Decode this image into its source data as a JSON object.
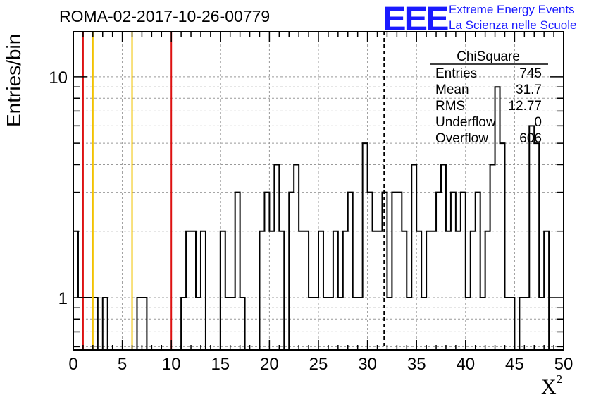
{
  "header": {
    "run_title": "ROMA-02-2017-10-26-00779",
    "logo_text": "EEE",
    "logo_line1": "Extreme Energy Events",
    "logo_line2": "La Scienza nelle Scuole"
  },
  "colors": {
    "histogram": "#000000",
    "red_lines": "#dd1111",
    "yellow_lines": "#f2c200",
    "logo": "#1a1aff",
    "grid": "#999999"
  },
  "stats_box": {
    "name": "ChiSquare",
    "rows": [
      {
        "label": "Entries",
        "value": "745"
      },
      {
        "label": "Mean",
        "value": "31.7"
      },
      {
        "label": "RMS",
        "value": "12.77"
      },
      {
        "label": "Underflow",
        "value": "0"
      },
      {
        "label": "Overflow",
        "value": "606"
      }
    ]
  },
  "chart_data": {
    "type": "histogram",
    "xlabel": "X",
    "xlabel_sup": "2",
    "ylabel": "Entries/bin",
    "xlim": [
      0,
      50
    ],
    "ylim": [
      0.58,
      16
    ],
    "log_y": true,
    "grid": true,
    "bin_width": 0.5,
    "x_ticks": [
      "0",
      "5",
      "10",
      "15",
      "20",
      "25",
      "30",
      "35",
      "40",
      "45",
      "50"
    ],
    "y_ticks": [
      {
        "value": 1,
        "label": "1"
      },
      {
        "value": 10,
        "label": "10"
      }
    ],
    "bins": [
      {
        "x": 0.0,
        "y": 2
      },
      {
        "x": 0.5,
        "y": 1
      },
      {
        "x": 1.0,
        "y": 1
      },
      {
        "x": 1.5,
        "y": 1
      },
      {
        "x": 2.0,
        "y": 1
      },
      {
        "x": 3.0,
        "y": 1
      },
      {
        "x": 6.5,
        "y": 1
      },
      {
        "x": 7.0,
        "y": 1
      },
      {
        "x": 11.0,
        "y": 1
      },
      {
        "x": 11.5,
        "y": 2
      },
      {
        "x": 12.0,
        "y": 2
      },
      {
        "x": 12.5,
        "y": 1
      },
      {
        "x": 13.0,
        "y": 2
      },
      {
        "x": 15.0,
        "y": 2
      },
      {
        "x": 15.5,
        "y": 1
      },
      {
        "x": 16.0,
        "y": 1
      },
      {
        "x": 16.5,
        "y": 3
      },
      {
        "x": 17.0,
        "y": 1
      },
      {
        "x": 19.0,
        "y": 2
      },
      {
        "x": 19.5,
        "y": 3
      },
      {
        "x": 20.0,
        "y": 2
      },
      {
        "x": 20.5,
        "y": 4
      },
      {
        "x": 21.0,
        "y": 2
      },
      {
        "x": 22.0,
        "y": 3
      },
      {
        "x": 22.5,
        "y": 4
      },
      {
        "x": 23.0,
        "y": 2
      },
      {
        "x": 23.5,
        "y": 2
      },
      {
        "x": 24.0,
        "y": 1
      },
      {
        "x": 24.5,
        "y": 1
      },
      {
        "x": 25.0,
        "y": 2
      },
      {
        "x": 25.5,
        "y": 1
      },
      {
        "x": 26.0,
        "y": 1
      },
      {
        "x": 26.5,
        "y": 2
      },
      {
        "x": 27.0,
        "y": 1
      },
      {
        "x": 27.5,
        "y": 2
      },
      {
        "x": 28.0,
        "y": 3
      },
      {
        "x": 28.5,
        "y": 1
      },
      {
        "x": 29.0,
        "y": 1
      },
      {
        "x": 29.5,
        "y": 5
      },
      {
        "x": 30.0,
        "y": 3
      },
      {
        "x": 30.5,
        "y": 2
      },
      {
        "x": 31.0,
        "y": 2
      },
      {
        "x": 31.5,
        "y": 3
      },
      {
        "x": 32.0,
        "y": 1
      },
      {
        "x": 32.5,
        "y": 3
      },
      {
        "x": 33.0,
        "y": 3
      },
      {
        "x": 33.5,
        "y": 2
      },
      {
        "x": 34.0,
        "y": 1
      },
      {
        "x": 34.5,
        "y": 4
      },
      {
        "x": 35.0,
        "y": 2
      },
      {
        "x": 35.5,
        "y": 1
      },
      {
        "x": 36.0,
        "y": 2
      },
      {
        "x": 36.5,
        "y": 2
      },
      {
        "x": 37.0,
        "y": 3
      },
      {
        "x": 37.5,
        "y": 4
      },
      {
        "x": 38.0,
        "y": 2
      },
      {
        "x": 38.5,
        "y": 3
      },
      {
        "x": 39.0,
        "y": 2
      },
      {
        "x": 39.5,
        "y": 3
      },
      {
        "x": 40.0,
        "y": 1
      },
      {
        "x": 40.5,
        "y": 2
      },
      {
        "x": 41.0,
        "y": 3
      },
      {
        "x": 41.5,
        "y": 1
      },
      {
        "x": 42.0,
        "y": 2
      },
      {
        "x": 42.5,
        "y": 4
      },
      {
        "x": 43.0,
        "y": 9
      },
      {
        "x": 43.5,
        "y": 5
      },
      {
        "x": 44.0,
        "y": 1
      },
      {
        "x": 44.5,
        "y": 1
      },
      {
        "x": 45.0,
        "y": 0
      },
      {
        "x": 45.5,
        "y": 1
      },
      {
        "x": 46.0,
        "y": 1
      },
      {
        "x": 46.5,
        "y": 6
      },
      {
        "x": 47.0,
        "y": 5
      },
      {
        "x": 47.5,
        "y": 1
      },
      {
        "x": 48.0,
        "y": 2
      }
    ],
    "vertical_lines": [
      {
        "x": 1,
        "color": "red",
        "style": "solid"
      },
      {
        "x": 10,
        "color": "red",
        "style": "solid"
      },
      {
        "x": 2,
        "color": "yellow",
        "style": "solid"
      },
      {
        "x": 6,
        "color": "yellow",
        "style": "solid"
      },
      {
        "x": 31.7,
        "color": "black",
        "style": "dashed"
      }
    ]
  }
}
